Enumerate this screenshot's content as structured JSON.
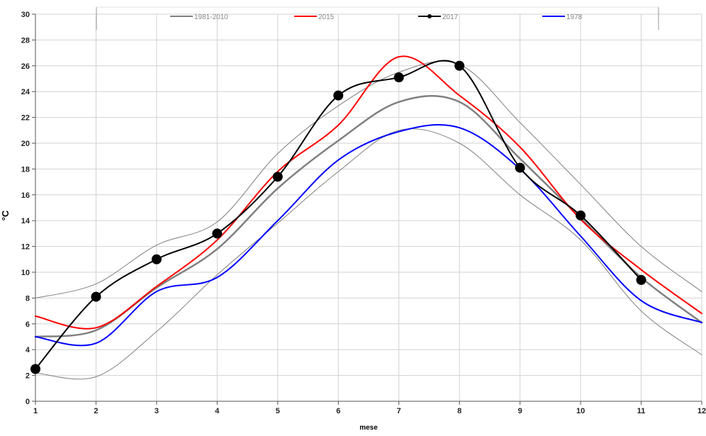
{
  "chart_data": {
    "type": "line",
    "xlabel": "mese",
    "ylabel": "°C",
    "xlim": [
      1,
      12
    ],
    "ylim": [
      0,
      30
    ],
    "xticks": [
      1,
      2,
      3,
      4,
      5,
      6,
      7,
      8,
      9,
      10,
      11,
      12
    ],
    "yticks": [
      0,
      2,
      4,
      6,
      8,
      10,
      12,
      14,
      16,
      18,
      20,
      22,
      24,
      26,
      28,
      30
    ],
    "grid": true,
    "legend_position": "top",
    "series": [
      {
        "name": "1981-2010",
        "color": "#808080",
        "width": 2.5,
        "marker": "none",
        "x": [
          1,
          2,
          3,
          4,
          5,
          6,
          7,
          8,
          9,
          10,
          11,
          12
        ],
        "y": [
          5.0,
          5.5,
          8.8,
          11.8,
          16.5,
          20.2,
          23.2,
          23.2,
          18.8,
          14.2,
          9.6,
          6.1
        ]
      },
      {
        "name": "2015",
        "color": "#ff0000",
        "width": 2,
        "marker": "none",
        "x": [
          1,
          2,
          3,
          4,
          5,
          6,
          7,
          8,
          9,
          10,
          11,
          12
        ],
        "y": [
          6.6,
          5.7,
          8.9,
          12.5,
          17.8,
          21.4,
          26.7,
          23.7,
          19.7,
          14.1,
          10.2,
          6.8
        ]
      },
      {
        "name": "2017",
        "color": "#000000",
        "width": 2,
        "marker": "circle",
        "x": [
          1,
          2,
          3,
          4,
          5,
          6,
          7,
          8,
          9,
          10,
          11
        ],
        "y": [
          2.5,
          8.1,
          11.0,
          13.0,
          17.4,
          23.7,
          25.1,
          26.0,
          18.1,
          14.4,
          9.4
        ]
      },
      {
        "name": "1978",
        "color": "#0000ff",
        "width": 2,
        "marker": "none",
        "x": [
          1,
          2,
          3,
          4,
          5,
          6,
          7,
          8,
          9,
          10,
          11,
          12
        ],
        "y": [
          5.0,
          4.5,
          8.5,
          9.6,
          14.0,
          18.7,
          20.9,
          21.2,
          18.0,
          12.8,
          7.8,
          6.1
        ]
      },
      {
        "name": "",
        "color": "#808080",
        "width": 1,
        "marker": "none",
        "x": [
          1,
          2,
          3,
          4,
          5,
          6,
          7,
          8,
          9,
          10,
          11,
          12
        ],
        "y": [
          8.0,
          9.1,
          12.1,
          13.9,
          19.2,
          22.9,
          25.5,
          26.1,
          21.6,
          16.8,
          12.0,
          8.5
        ]
      },
      {
        "name": "",
        "color": "#808080",
        "width": 1,
        "marker": "none",
        "x": [
          1,
          2,
          3,
          4,
          5,
          6,
          7,
          8,
          9,
          10,
          11,
          12
        ],
        "y": [
          2.2,
          1.9,
          5.4,
          9.8,
          13.8,
          17.8,
          21.0,
          20.0,
          16.0,
          12.5,
          7.0,
          3.6
        ]
      }
    ]
  }
}
